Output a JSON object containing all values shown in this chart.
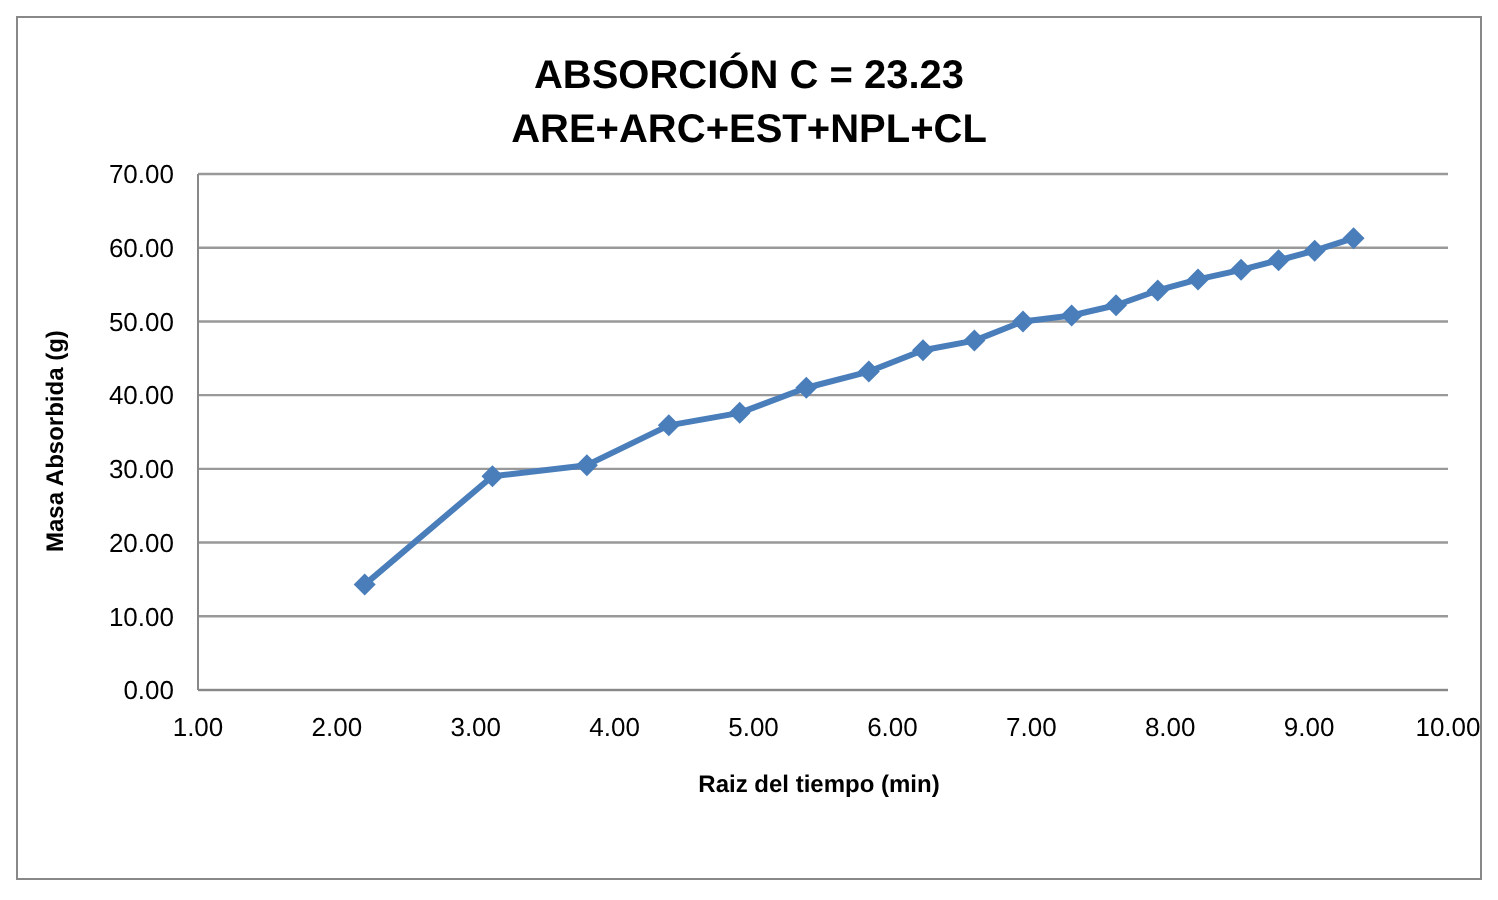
{
  "chart_data": {
    "type": "line",
    "title": "ABSORCIÓN C = 23.23",
    "subtitle": "ARE+ARC+EST+NPL+CL",
    "xlabel": "Raiz del tiempo (min)",
    "ylabel": "Masa Absorbida  (g)",
    "x": [
      2.2,
      3.12,
      3.8,
      4.39,
      4.9,
      5.38,
      5.83,
      6.22,
      6.59,
      6.94,
      7.29,
      7.61,
      7.91,
      8.2,
      8.51,
      8.78,
      9.04,
      9.32
    ],
    "series": [
      {
        "color": "#4a7ebb",
        "values": [
          14.3,
          29.0,
          30.5,
          35.9,
          37.6,
          41.0,
          43.2,
          46.1,
          47.4,
          50.0,
          50.8,
          52.2,
          54.2,
          55.7,
          57.0,
          58.3,
          59.6,
          61.3
        ]
      }
    ],
    "xlim": [
      1,
      10
    ],
    "xticks": [
      {
        "value": 1,
        "label": "1.00"
      },
      {
        "value": 2,
        "label": "2.00"
      },
      {
        "value": 3,
        "label": "3.00"
      },
      {
        "value": 4,
        "label": "4.00"
      },
      {
        "value": 5,
        "label": "5.00"
      },
      {
        "value": 6,
        "label": "6.00"
      },
      {
        "value": 7,
        "label": "7.00"
      },
      {
        "value": 8,
        "label": "8.00"
      },
      {
        "value": 9,
        "label": "9.00"
      },
      {
        "value": 10,
        "label": "10.00"
      }
    ],
    "ylim": [
      0,
      70
    ],
    "yticks": [
      {
        "value": 0,
        "label": "0.00"
      },
      {
        "value": 10,
        "label": "10.00"
      },
      {
        "value": 20,
        "label": "20.00"
      },
      {
        "value": 30,
        "label": "30.00"
      },
      {
        "value": 40,
        "label": "40.00"
      },
      {
        "value": 50,
        "label": "50.00"
      },
      {
        "value": 60,
        "label": "60.00"
      },
      {
        "value": 70,
        "label": "70.00"
      }
    ],
    "grid": "y",
    "marker": "diamond",
    "line_style": "solid",
    "legend": false
  }
}
